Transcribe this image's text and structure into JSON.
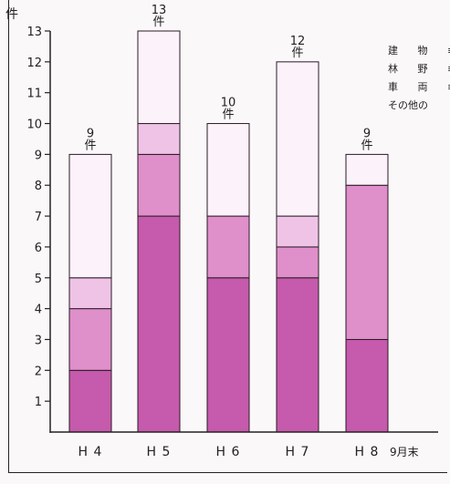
{
  "chart_data": {
    "type": "bar",
    "stacked": true,
    "ylabel": "件",
    "ylim": [
      0,
      13
    ],
    "yticks": [
      "1",
      "2",
      "3",
      "4",
      "5",
      "6",
      "7",
      "8",
      "9",
      "10",
      "11",
      "12",
      "13"
    ],
    "categories": [
      "H 4",
      "H 5",
      "H 6",
      "H 7",
      "H 8"
    ],
    "category_note": "9月末",
    "totals": [
      9,
      13,
      10,
      12,
      9
    ],
    "total_labels": [
      {
        "value": "9",
        "unit": "件"
      },
      {
        "value": "13",
        "unit": "件"
      },
      {
        "value": "10",
        "unit": "件"
      },
      {
        "value": "12",
        "unit": "件"
      },
      {
        "value": "9",
        "unit": "件"
      }
    ],
    "series": [
      {
        "values": [
          2,
          7,
          5,
          5,
          3
        ],
        "color": "#c65aac"
      },
      {
        "values": [
          2,
          2,
          2,
          1,
          5
        ],
        "color": "#df8fca"
      },
      {
        "values": [
          1,
          1,
          0,
          1,
          0
        ],
        "color": "#efc3e6"
      },
      {
        "values": [
          4,
          3,
          3,
          5,
          1
        ],
        "color": "#fcf2f9"
      }
    ],
    "legend_partial": [
      "建 物 ≡",
      "林 野 ≡",
      "車 両 ≡",
      "その他の"
    ],
    "grid": false
  }
}
